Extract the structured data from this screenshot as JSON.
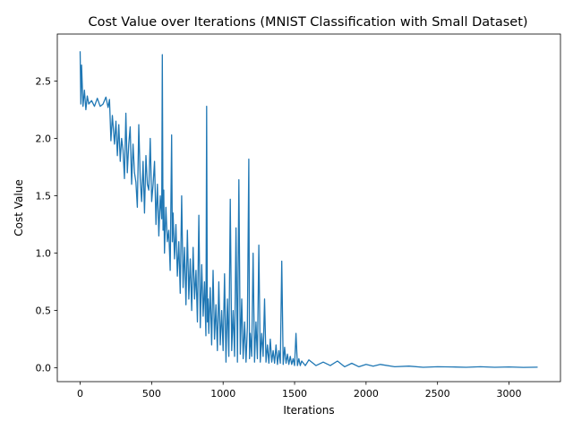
{
  "chart_data": {
    "type": "line",
    "title": "Cost Value over Iterations (MNIST Classification with Small Dataset)",
    "xlabel": "Iterations",
    "ylabel": "Cost Value",
    "xlim": [
      -160,
      3360
    ],
    "ylim": [
      -0.12,
      2.91
    ],
    "xticks": [
      0,
      500,
      1000,
      1500,
      2000,
      2500,
      3000
    ],
    "yticks": [
      0.0,
      0.5,
      1.0,
      1.5,
      2.0,
      2.5
    ],
    "xtick_labels": [
      "0",
      "500",
      "1000",
      "1500",
      "2000",
      "2500",
      "3000"
    ],
    "ytick_labels": [
      "0.0",
      "0.5",
      "1.0",
      "1.5",
      "2.0",
      "2.5"
    ],
    "grid": false,
    "series": [
      {
        "color": "#1f77b4",
        "x": [
          0,
          5,
          10,
          20,
          30,
          40,
          50,
          60,
          80,
          100,
          120,
          140,
          160,
          180,
          195,
          205,
          215,
          225,
          240,
          250,
          260,
          270,
          280,
          290,
          300,
          310,
          320,
          330,
          340,
          350,
          360,
          370,
          380,
          390,
          400,
          410,
          420,
          430,
          440,
          450,
          460,
          470,
          480,
          490,
          500,
          510,
          520,
          530,
          540,
          550,
          560,
          570,
          575,
          580,
          585,
          590,
          600,
          610,
          620,
          630,
          640,
          645,
          650,
          660,
          670,
          680,
          690,
          700,
          710,
          720,
          730,
          740,
          750,
          760,
          770,
          780,
          790,
          800,
          810,
          820,
          830,
          840,
          850,
          860,
          870,
          880,
          885,
          890,
          895,
          900,
          910,
          920,
          930,
          940,
          950,
          960,
          970,
          980,
          990,
          1000,
          1010,
          1020,
          1030,
          1040,
          1050,
          1060,
          1070,
          1080,
          1090,
          1100,
          1110,
          1120,
          1130,
          1140,
          1150,
          1160,
          1170,
          1180,
          1185,
          1190,
          1200,
          1210,
          1220,
          1230,
          1240,
          1250,
          1260,
          1270,
          1280,
          1290,
          1300,
          1310,
          1320,
          1330,
          1340,
          1350,
          1360,
          1370,
          1380,
          1390,
          1400,
          1410,
          1420,
          1430,
          1440,
          1450,
          1460,
          1470,
          1480,
          1490,
          1500,
          1510,
          1520,
          1530,
          1540,
          1550,
          1575,
          1600,
          1650,
          1700,
          1750,
          1800,
          1850,
          1900,
          1950,
          2000,
          2050,
          2100,
          2200,
          2300,
          2400,
          2500,
          2600,
          2700,
          2800,
          2900,
          3000,
          3100,
          3200
        ],
        "values": [
          2.76,
          2.3,
          2.64,
          2.28,
          2.42,
          2.25,
          2.37,
          2.3,
          2.33,
          2.28,
          2.35,
          2.28,
          2.3,
          2.36,
          2.27,
          2.34,
          1.98,
          2.2,
          1.95,
          2.15,
          1.85,
          2.12,
          1.8,
          2.0,
          1.9,
          1.65,
          2.22,
          1.7,
          1.95,
          2.1,
          1.6,
          1.95,
          1.7,
          1.62,
          1.4,
          2.12,
          1.65,
          1.45,
          1.8,
          1.35,
          1.85,
          1.6,
          1.55,
          2.0,
          1.45,
          1.6,
          1.8,
          1.25,
          1.6,
          1.15,
          1.5,
          1.3,
          2.73,
          1.2,
          1.55,
          1.0,
          1.4,
          1.1,
          1.2,
          0.85,
          2.03,
          1.1,
          1.35,
          0.95,
          1.25,
          0.8,
          1.1,
          0.65,
          1.5,
          0.7,
          1.05,
          0.55,
          1.2,
          0.6,
          0.95,
          0.5,
          1.05,
          0.6,
          0.85,
          0.4,
          1.33,
          0.35,
          0.9,
          0.45,
          0.75,
          0.28,
          2.28,
          0.4,
          0.6,
          0.3,
          0.7,
          0.2,
          0.85,
          0.25,
          0.55,
          0.15,
          0.75,
          0.2,
          0.5,
          0.15,
          0.82,
          0.05,
          0.6,
          0.1,
          1.47,
          0.15,
          0.5,
          0.1,
          1.22,
          0.05,
          1.64,
          0.12,
          0.6,
          0.08,
          0.4,
          0.05,
          0.35,
          1.82,
          0.08,
          0.3,
          0.1,
          1.0,
          0.05,
          0.4,
          0.08,
          1.07,
          0.05,
          0.3,
          0.1,
          0.6,
          0.05,
          0.2,
          0.04,
          0.25,
          0.05,
          0.15,
          0.04,
          0.2,
          0.03,
          0.15,
          0.04,
          0.93,
          0.03,
          0.18,
          0.04,
          0.12,
          0.03,
          0.1,
          0.03,
          0.08,
          0.02,
          0.3,
          0.02,
          0.08,
          0.02,
          0.06,
          0.02,
          0.07,
          0.02,
          0.05,
          0.02,
          0.06,
          0.01,
          0.04,
          0.01,
          0.03,
          0.015,
          0.03,
          0.01,
          0.015,
          0.005,
          0.01,
          0.008,
          0.005,
          0.01,
          0.005,
          0.008,
          0.004,
          0.006
        ]
      }
    ]
  }
}
